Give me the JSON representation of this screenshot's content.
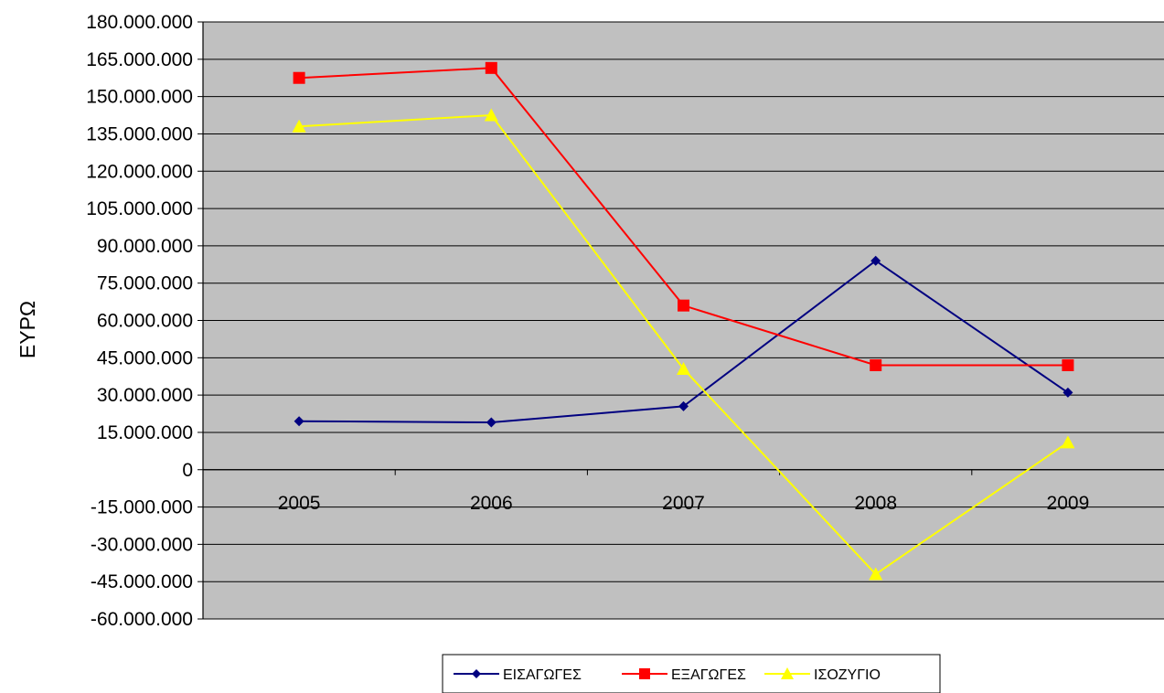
{
  "chart_data": {
    "type": "line",
    "ylabel": "ΕΥΡΩ",
    "xlabel": "",
    "title": "",
    "categories": [
      "2005",
      "2006",
      "2007",
      "2008",
      "2009"
    ],
    "ylim": [
      -60000000,
      180000000
    ],
    "yticks": [
      180000000,
      165000000,
      150000000,
      135000000,
      120000000,
      105000000,
      90000000,
      75000000,
      60000000,
      45000000,
      30000000,
      15000000,
      0,
      -15000000,
      -30000000,
      -45000000,
      -60000000
    ],
    "ytick_labels": [
      "180.000.000",
      "165.000.000",
      "150.000.000",
      "135.000.000",
      "120.000.000",
      "105.000.000",
      "90.000.000",
      "75.000.000",
      "60.000.000",
      "45.000.000",
      "30.000.000",
      "15.000.000",
      "0",
      "-15.000.000",
      "-30.000.000",
      "-45.000.000",
      "-60.000.000"
    ],
    "grid": true,
    "plot_background": "#c0c0c0",
    "legend_position": "bottom",
    "series": [
      {
        "name": "ΕΙΣΑΓΩΓΕΣ",
        "color": "#000080",
        "marker": "diamond",
        "values": [
          19500000,
          19000000,
          25500000,
          84000000,
          31000000
        ]
      },
      {
        "name": "ΕΞΑΓΩΓΕΣ",
        "color": "#ff0000",
        "marker": "square",
        "values": [
          157500000,
          161500000,
          66000000,
          42000000,
          42000000
        ]
      },
      {
        "name": "ΙΣΟΖΥΓΙΟ",
        "color": "#ffff00",
        "marker": "triangle",
        "values": [
          138000000,
          142500000,
          40500000,
          -42000000,
          11000000
        ]
      }
    ]
  }
}
